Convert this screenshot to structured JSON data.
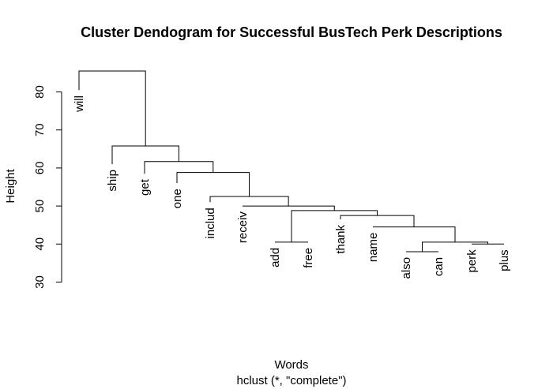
{
  "chart_data": {
    "type": "dendrogram",
    "title": "Cluster Dendogram for Successful BusTech Perk Descriptions",
    "xlabel": "Words",
    "sublabel": "hclust (*, \"complete\")",
    "ylabel": "Height",
    "ylim": [
      30,
      85.5
    ],
    "yticks": [
      30,
      40,
      50,
      60,
      70,
      80
    ],
    "leaves": [
      "will",
      "ship",
      "get",
      "one",
      "includ",
      "receiv",
      "add",
      "free",
      "thank",
      "name",
      "also",
      "can",
      "perk",
      "plus"
    ],
    "leaf_tip_heights": [
      80.5,
      61,
      58.5,
      56,
      51,
      50,
      40.5,
      40.5,
      46.5,
      44.5,
      38,
      38,
      40,
      40
    ],
    "merges": [
      {
        "left": "add",
        "right": "free",
        "height": 40.5
      },
      {
        "left": "also",
        "right": "can",
        "height": 38
      },
      {
        "left": "perk",
        "right": "plus",
        "height": 40
      },
      {
        "left": "also+can",
        "right": "perk+plus",
        "height": 40.5
      },
      {
        "left": "name",
        "right": "also+can+perk+plus",
        "height": 44.5
      },
      {
        "left": "thank",
        "right": "name+also+can+perk+plus",
        "height": 47.5
      },
      {
        "left": "add+free",
        "right": "thank+...",
        "height": 48.8
      },
      {
        "left": "receiv",
        "right": "add+free+thank+...",
        "height": 50
      },
      {
        "left": "includ",
        "right": "receiv+...",
        "height": 52.5
      },
      {
        "left": "one",
        "right": "includ+...",
        "height": 58.8
      },
      {
        "left": "get",
        "right": "one+...",
        "height": 61.7
      },
      {
        "left": "ship",
        "right": "get+...",
        "height": 65.8
      },
      {
        "left": "will",
        "right": "ship+...",
        "height": 85.5
      }
    ]
  }
}
